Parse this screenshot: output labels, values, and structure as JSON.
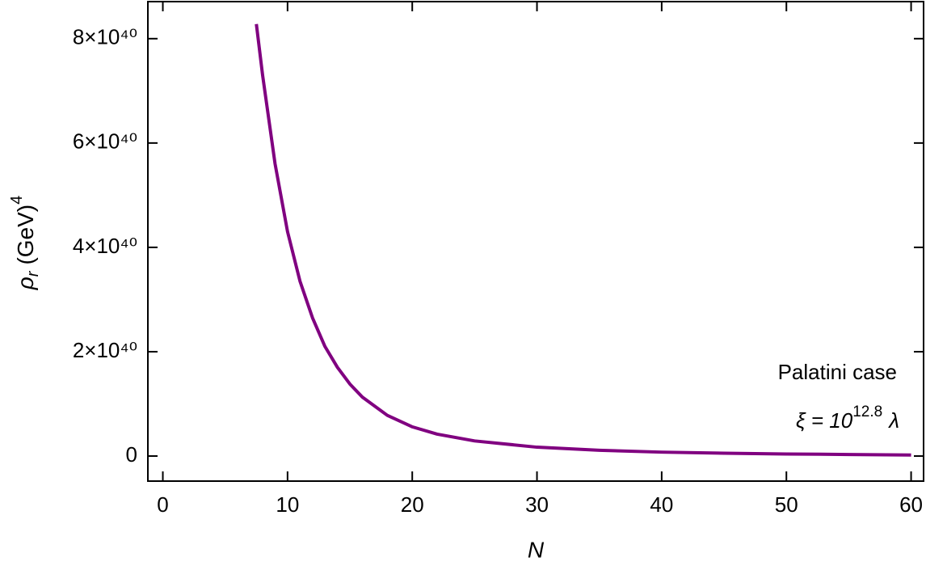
{
  "chart_data": {
    "type": "line",
    "x_label": "N",
    "y_label": {
      "base": "ρ",
      "sub": "r",
      "unit": "(GeV)",
      "sup": "4"
    },
    "annotations": [
      {
        "text": "Palatini case"
      },
      {
        "text": "ξ = 10",
        "sup": "12.8",
        "tail": "λ"
      }
    ],
    "x": [
      7.5,
      8,
      9,
      10,
      11,
      12,
      13,
      14,
      15,
      16,
      18,
      20,
      22,
      25,
      30,
      35,
      40,
      45,
      50,
      55,
      60
    ],
    "series": [
      {
        "color": "#800080",
        "values": [
          8.28e+40,
          7.3e+40,
          5.6e+40,
          4.3e+40,
          3.35e+40,
          2.65e+40,
          2.1e+40,
          1.7e+40,
          1.38e+40,
          1.13e+40,
          7.8e+39,
          5.6e+39,
          4.2e+39,
          2.9e+39,
          1.7e+39,
          1.1e+39,
          7.5e+38,
          5.5e+38,
          4e+38,
          3e+38,
          2e+38
        ]
      }
    ],
    "xlim": [
      -1.2,
      61
    ],
    "xticks": [
      0,
      10,
      20,
      30,
      40,
      50,
      60
    ],
    "ylim": [
      -4.8e+39,
      8.71e+40
    ],
    "yticks": [
      {
        "value": 0,
        "label": "0"
      },
      {
        "value": 2e+40,
        "label": "2×10⁴⁰"
      },
      {
        "value": 4e+40,
        "label": "4×10⁴⁰"
      },
      {
        "value": 6e+40,
        "label": "6×10⁴⁰"
      },
      {
        "value": 8e+40,
        "label": "8×10⁴⁰"
      }
    ]
  }
}
